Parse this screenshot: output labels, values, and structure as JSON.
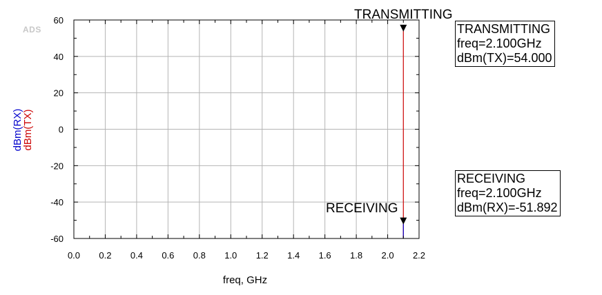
{
  "logo": "ADS",
  "chart_data": {
    "type": "line",
    "xlabel": "freq, GHz",
    "xlim": [
      0.0,
      2.2
    ],
    "ylim": [
      -60,
      60
    ],
    "x_ticks": [
      "0.0",
      "0.2",
      "0.4",
      "0.6",
      "0.8",
      "1.0",
      "1.2",
      "1.4",
      "1.6",
      "1.8",
      "2.0",
      "2.2"
    ],
    "y_ticks": [
      "60",
      "40",
      "20",
      "0",
      "-20",
      "-40",
      "-60"
    ],
    "grid": true,
    "ylabels": [
      {
        "text": "dBm(RX)",
        "color": "#0000cc"
      },
      {
        "text": "dBm(TX)",
        "color": "#cc0000"
      }
    ],
    "series": [
      {
        "name": "dBm(TX)",
        "color": "#cc0000",
        "x": [
          2.1,
          2.1
        ],
        "y": [
          -60,
          54.0
        ]
      },
      {
        "name": "dBm(RX)",
        "color": "#0000cc",
        "x": [
          2.1,
          2.1
        ],
        "y": [
          -60,
          -51.892
        ]
      }
    ],
    "markers": [
      {
        "name": "TRANSMITTING",
        "x": 2.1,
        "y": 54.0,
        "readout": [
          "TRANSMITTING",
          "freq=2.100GHz",
          "dBm(TX)=54.000"
        ]
      },
      {
        "name": "RECEIVING",
        "x": 2.1,
        "y": -51.892,
        "readout": [
          "RECEIVING",
          "freq=2.100GHz",
          "dBm(RX)=-51.892"
        ]
      }
    ]
  }
}
